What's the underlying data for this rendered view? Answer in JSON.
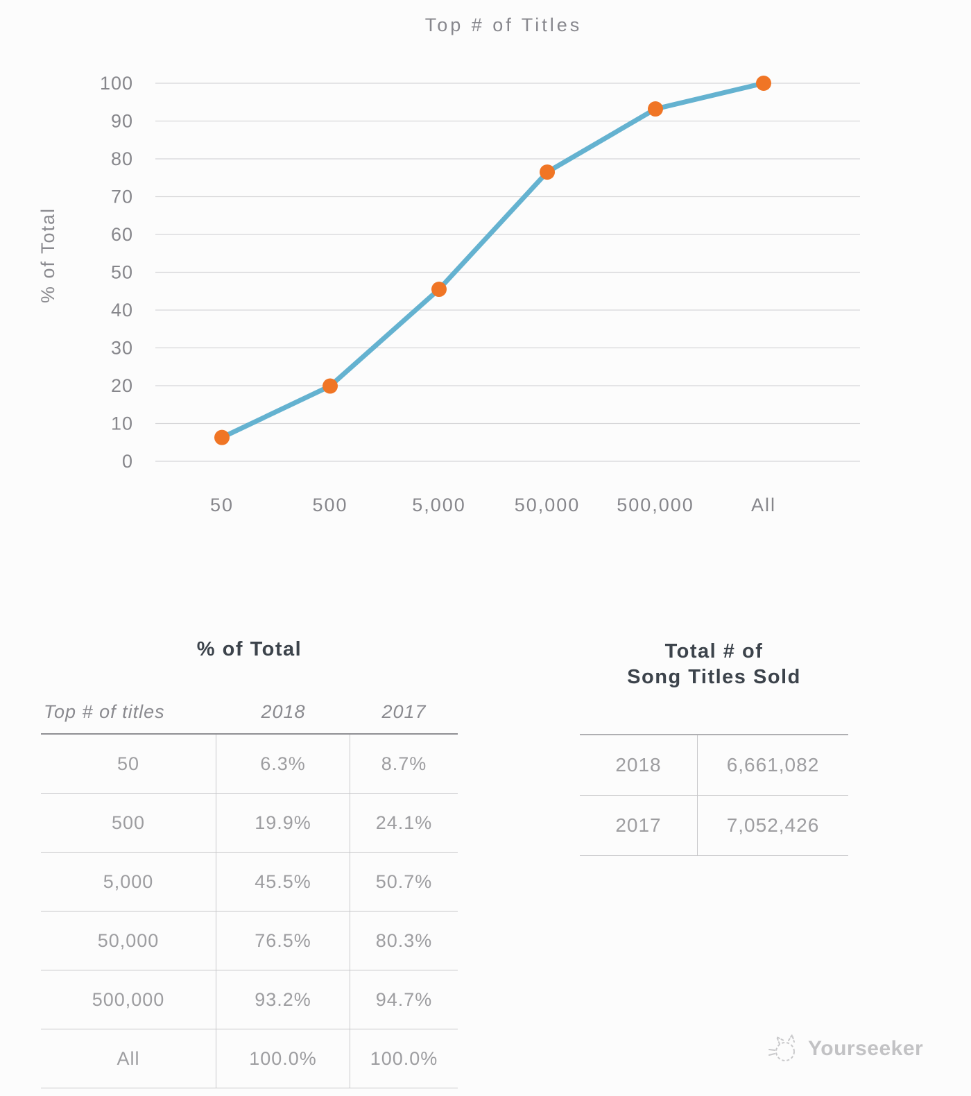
{
  "chart_data": {
    "type": "line",
    "title": "Top # of Titles",
    "xlabel": "",
    "ylabel": "% of Total",
    "categories": [
      "50",
      "500",
      "5,000",
      "50,000",
      "500,000",
      "All"
    ],
    "series": [
      {
        "name": "2018",
        "values": [
          6.3,
          19.9,
          45.5,
          76.5,
          93.2,
          100.0
        ]
      }
    ],
    "ylim": [
      0,
      100
    ],
    "yticks": [
      0,
      10,
      20,
      30,
      40,
      50,
      60,
      70,
      80,
      90,
      100
    ],
    "grid": true,
    "legend": false,
    "colors": {
      "line": "#64B2D0",
      "point": "#F07525",
      "grid": "#D6D6D8",
      "tick_text": "#86868B",
      "title_text": "#87878D"
    }
  },
  "percent_table": {
    "title": "% of Total",
    "columns": [
      "Top # of titles",
      "2018",
      "2017"
    ],
    "rows": [
      {
        "label": "50",
        "y2018": "6.3%",
        "y2017": "8.7%"
      },
      {
        "label": "500",
        "y2018": "19.9%",
        "y2017": "24.1%"
      },
      {
        "label": "5,000",
        "y2018": "45.5%",
        "y2017": "50.7%"
      },
      {
        "label": "50,000",
        "y2018": "76.5%",
        "y2017": "80.3%"
      },
      {
        "label": "500,000",
        "y2018": "93.2%",
        "y2017": "94.7%"
      },
      {
        "label": "All",
        "y2018": "100.0%",
        "y2017": "100.0%"
      }
    ]
  },
  "totals_table": {
    "title_line1": "Total # of",
    "title_line2": "Song Titles Sold",
    "rows": [
      {
        "year": "2018",
        "value": "6,661,082"
      },
      {
        "year": "2017",
        "value": "7,052,426"
      }
    ]
  },
  "watermark": {
    "label": "Yourseeker"
  }
}
